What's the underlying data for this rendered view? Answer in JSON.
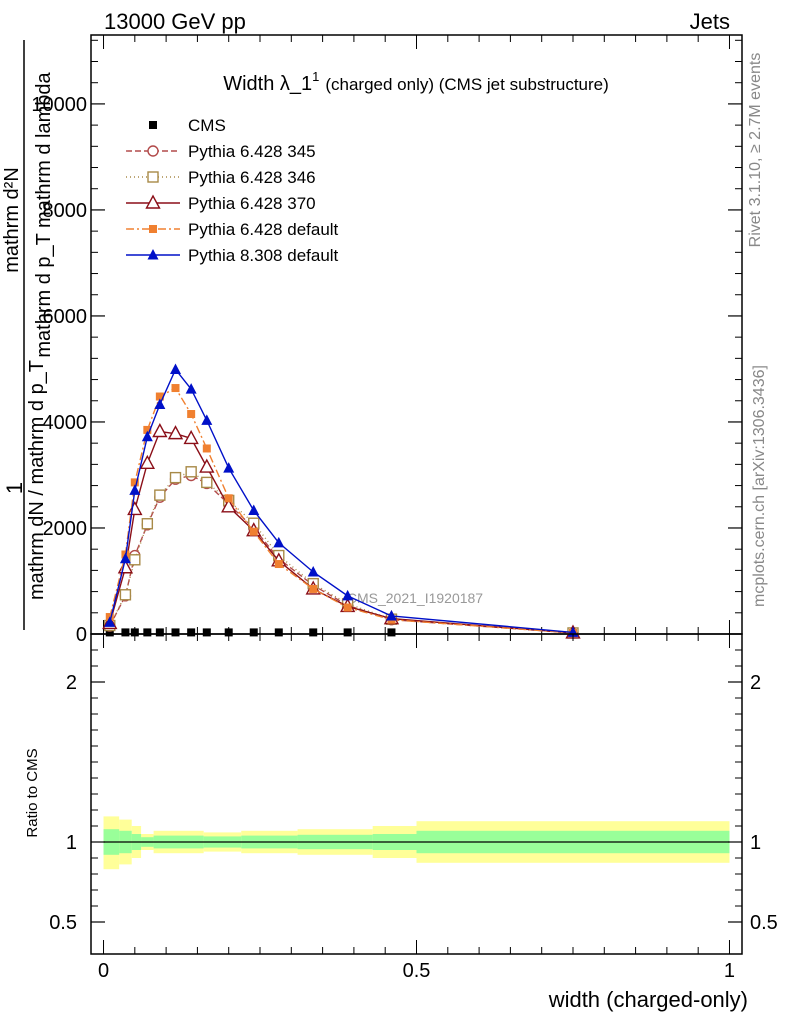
{
  "header": {
    "energy_label": "13000 GeV pp",
    "category_label": "Jets"
  },
  "side_labels": {
    "rivet": "Rivet 3.1.10, ≥ 2.7M events",
    "mcplots": "mcplots.cern.ch [arXiv:1306.3436]"
  },
  "chart_data": {
    "type": "line",
    "title_main": "Width λ_1",
    "title_sup": "1",
    "title_suffix": "(charged only) (CMS jet substructure)",
    "watermark": "CMS_2021_I1920187",
    "xlabel": "width (charged-only)",
    "ylabel_numerator": "mathrm d²N",
    "ylabel_denominator": "mathrm d p_T mathrm d lambda",
    "ylabel_prefix": "1",
    "ylabel_prefix_sub": "mathrm dN / mathrm d p_T",
    "ratio_ylabel": "Ratio to CMS",
    "xlim": [
      -0.02,
      1.02
    ],
    "ylim": [
      0,
      11300
    ],
    "ratio_ylim": [
      0.3,
      2.3
    ],
    "x_ticks": [
      0,
      0.5,
      1
    ],
    "x_tick_labels": [
      "0",
      "0.5",
      "1"
    ],
    "y_ticks": [
      0,
      2000,
      4000,
      6000,
      8000,
      10000
    ],
    "y_tick_labels": [
      "0",
      "2000",
      "4000",
      "6000",
      "8000",
      "10000"
    ],
    "ratio_ticks": [
      0.5,
      1,
      2
    ],
    "ratio_tick_labels": [
      "0.5",
      "1",
      "2"
    ],
    "legend_position": "top-left",
    "x": [
      0.01,
      0.035,
      0.05,
      0.07,
      0.09,
      0.115,
      0.14,
      0.165,
      0.2,
      0.24,
      0.28,
      0.335,
      0.39,
      0.46,
      0.75
    ],
    "cms_values": [
      30,
      30,
      30,
      30,
      30,
      30,
      30,
      30,
      30,
      30,
      30,
      30,
      30,
      30,
      30
    ],
    "series": [
      {
        "name": "CMS",
        "color": "#000000",
        "marker": "filled-square",
        "dash": "none",
        "values": [
          30,
          30,
          30,
          30,
          30,
          30,
          30,
          30,
          30,
          30,
          30,
          30,
          30,
          30,
          30
        ]
      },
      {
        "name": "Pythia 6.428 345",
        "color": "#b24a4a",
        "marker": "open-circle",
        "dash": "6,3",
        "values": [
          150,
          720,
          1480,
          2060,
          2580,
          2920,
          2990,
          2840,
          2450,
          2000,
          1420,
          920,
          540,
          270,
          20
        ]
      },
      {
        "name": "Pythia 6.428 346",
        "color": "#a88a48",
        "marker": "open-square",
        "dash": "1,3",
        "values": [
          160,
          740,
          1400,
          2080,
          2620,
          2950,
          3060,
          2860,
          2520,
          2090,
          1480,
          950,
          570,
          280,
          20
        ]
      },
      {
        "name": "Pythia 6.428 370",
        "color": "#8b0f18",
        "marker": "open-triangle",
        "dash": "none",
        "values": [
          200,
          1250,
          2350,
          3220,
          3820,
          3780,
          3690,
          3150,
          2400,
          1950,
          1380,
          850,
          520,
          290,
          20
        ]
      },
      {
        "name": "Pythia 6.428 default",
        "color": "#f08030",
        "marker": "filled-square",
        "dash": "8,3,2,3",
        "values": [
          320,
          1500,
          2860,
          3850,
          4480,
          4640,
          4150,
          3500,
          2560,
          1930,
          1320,
          850,
          500,
          270,
          20
        ]
      },
      {
        "name": "Pythia 8.308 default",
        "color": "#0010c8",
        "marker": "filled-triangle",
        "dash": "none",
        "values": [
          220,
          1420,
          2710,
          3720,
          4330,
          4990,
          4620,
          4030,
          3130,
          2330,
          1720,
          1170,
          720,
          340,
          30
        ]
      }
    ],
    "ratio_band_bins": [
      {
        "x0": 0.0,
        "x1": 0.025,
        "inner": [
          0.92,
          1.08
        ],
        "outer": [
          0.83,
          1.16
        ]
      },
      {
        "x0": 0.025,
        "x1": 0.045,
        "inner": [
          0.93,
          1.07
        ],
        "outer": [
          0.86,
          1.14
        ]
      },
      {
        "x0": 0.045,
        "x1": 0.06,
        "inner": [
          0.95,
          1.05
        ],
        "outer": [
          0.9,
          1.1
        ]
      },
      {
        "x0": 0.06,
        "x1": 0.08,
        "inner": [
          0.97,
          1.03
        ],
        "outer": [
          0.95,
          1.05
        ]
      },
      {
        "x0": 0.08,
        "x1": 0.16,
        "inner": [
          0.96,
          1.04
        ],
        "outer": [
          0.93,
          1.07
        ]
      },
      {
        "x0": 0.16,
        "x1": 0.22,
        "inner": [
          0.965,
          1.035
        ],
        "outer": [
          0.94,
          1.06
        ]
      },
      {
        "x0": 0.22,
        "x1": 0.31,
        "inner": [
          0.96,
          1.04
        ],
        "outer": [
          0.93,
          1.07
        ]
      },
      {
        "x0": 0.31,
        "x1": 0.43,
        "inner": [
          0.955,
          1.045
        ],
        "outer": [
          0.92,
          1.08
        ]
      },
      {
        "x0": 0.43,
        "x1": 0.5,
        "inner": [
          0.95,
          1.05
        ],
        "outer": [
          0.9,
          1.1
        ]
      },
      {
        "x0": 0.5,
        "x1": 1.0,
        "inner": [
          0.93,
          1.07
        ],
        "outer": [
          0.87,
          1.13
        ]
      }
    ],
    "ratio_line": 1
  }
}
